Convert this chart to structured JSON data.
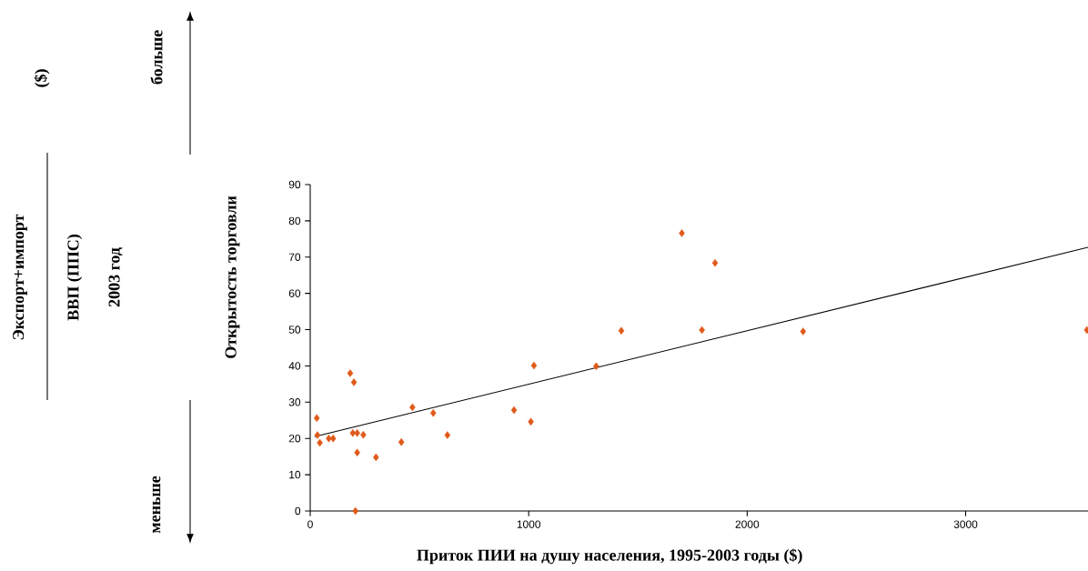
{
  "chart_data": {
    "type": "scatter",
    "xlabel": "Приток ПИИ на душу населения, 1995-2003 годы ($)",
    "ylabel": "Открытость торговли",
    "annotations": [
      "Экспорт+импорт",
      "($)",
      "ВВП (ППС)",
      "2003 год",
      "больше",
      "меньше"
    ],
    "xlim": [
      0,
      3560
    ],
    "ylim": [
      0,
      90
    ],
    "xticks": [
      0,
      1000,
      2000,
      3000
    ],
    "yticks": [
      0,
      10,
      20,
      30,
      40,
      50,
      60,
      70,
      80,
      90
    ],
    "series": [
      {
        "marker": "diamond",
        "color": "#e05a1a",
        "x": [
          30,
          33,
          44,
          85,
          105,
          183,
          200,
          195,
          215,
          215,
          243,
          207,
          301,
          417,
          468,
          563,
          628,
          933,
          1010,
          1024,
          1309,
          1424,
          1701,
          1853,
          1793,
          2256,
          3555
        ],
        "values": [
          25.6,
          20.9,
          18.8,
          20,
          20,
          38,
          35.5,
          21.5,
          21.5,
          16.1,
          21,
          0,
          14.8,
          19,
          28.6,
          27,
          20.9,
          27.8,
          24.6,
          40.1,
          39.9,
          49.7,
          76.6,
          68.4,
          49.9,
          49.5,
          49.9
        ]
      },
      {
        "type": "line",
        "color": "#000000",
        "x": [
          20,
          3560
        ],
        "values": [
          20.5,
          72.7
        ]
      }
    ]
  }
}
